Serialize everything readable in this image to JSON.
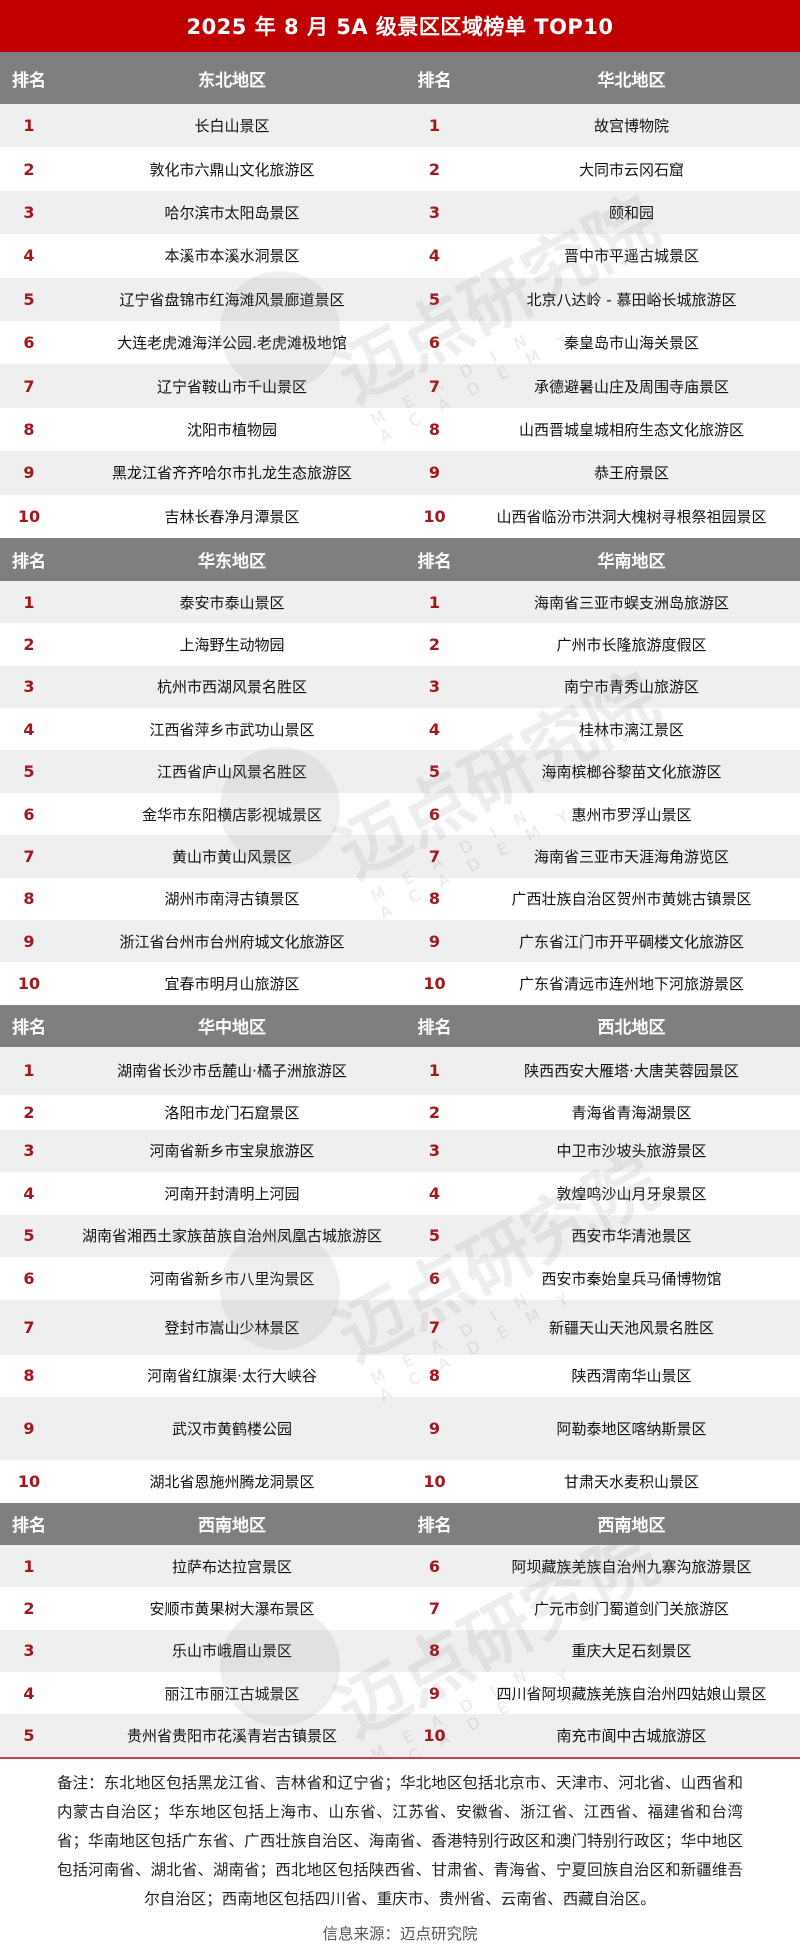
{
  "title": "2025 年 8 月 5A 级景区区域榜单 TOP10",
  "rank_header": "排名",
  "watermark": {
    "text": "迈点研究院",
    "sub": "MEADIN ACADEMY"
  },
  "colors": {
    "title_bg": "#c00000",
    "header_bg": "#7f7f7f",
    "rank_text": "#a3161c",
    "row_alt": "#efefef"
  },
  "sections": [
    {
      "left_region": "东北地区",
      "right_region": "华北地区",
      "rows": [
        {
          "lr": "1",
          "ln": "长白山景区",
          "rr": "1",
          "rn": "故宫博物院"
        },
        {
          "lr": "2",
          "ln": "敦化市六鼎山文化旅游区",
          "rr": "2",
          "rn": "大同市云冈石窟"
        },
        {
          "lr": "3",
          "ln": "哈尔滨市太阳岛景区",
          "rr": "3",
          "rn": "颐和园"
        },
        {
          "lr": "4",
          "ln": "本溪市本溪水洞景区",
          "rr": "4",
          "rn": "晋中市平遥古城景区"
        },
        {
          "lr": "5",
          "ln": "辽宁省盘锦市红海滩风景廊道景区",
          "rr": "5",
          "rn": "北京八达岭 - 慕田峪长城旅游区"
        },
        {
          "lr": "6",
          "ln": "大连老虎滩海洋公园.老虎滩极地馆",
          "rr": "6",
          "rn": "秦皇岛市山海关景区"
        },
        {
          "lr": "7",
          "ln": "辽宁省鞍山市千山景区",
          "rr": "7",
          "rn": "承德避暑山庄及周围寺庙景区"
        },
        {
          "lr": "8",
          "ln": "沈阳市植物园",
          "rr": "8",
          "rn": "山西晋城皇城相府生态文化旅游区"
        },
        {
          "lr": "9",
          "ln": "黑龙江省齐齐哈尔市扎龙生态旅游区",
          "rr": "9",
          "rn": "恭王府景区"
        },
        {
          "lr": "10",
          "ln": "吉林长春净月潭景区",
          "rr": "10",
          "rn": "山西省临汾市洪洞大槐树寻根祭祖园景区"
        }
      ]
    },
    {
      "left_region": "华东地区",
      "right_region": "华南地区",
      "rows": [
        {
          "lr": "1",
          "ln": "泰安市泰山景区",
          "rr": "1",
          "rn": "海南省三亚市蜈支洲岛旅游区"
        },
        {
          "lr": "2",
          "ln": "上海野生动物园",
          "rr": "2",
          "rn": "广州市长隆旅游度假区"
        },
        {
          "lr": "3",
          "ln": "杭州市西湖风景名胜区",
          "rr": "3",
          "rn": "南宁市青秀山旅游区"
        },
        {
          "lr": "4",
          "ln": "江西省萍乡市武功山景区",
          "rr": "4",
          "rn": "桂林市漓江景区"
        },
        {
          "lr": "5",
          "ln": "江西省庐山风景名胜区",
          "rr": "5",
          "rn": "海南槟榔谷黎苗文化旅游区"
        },
        {
          "lr": "6",
          "ln": "金华市东阳横店影视城景区",
          "rr": "6",
          "rn": "惠州市罗浮山景区"
        },
        {
          "lr": "7",
          "ln": "黄山市黄山风景区",
          "rr": "7",
          "rn": "海南省三亚市天涯海角游览区"
        },
        {
          "lr": "8",
          "ln": "湖州市南浔古镇景区",
          "rr": "8",
          "rn": "广西壮族自治区贺州市黄姚古镇景区"
        },
        {
          "lr": "9",
          "ln": "浙江省台州市台州府城文化旅游区",
          "rr": "9",
          "rn": "广东省江门市开平碉楼文化旅游区"
        },
        {
          "lr": "10",
          "ln": "宜春市明月山旅游区",
          "rr": "10",
          "rn": "广东省清远市连州地下河旅游景区"
        }
      ]
    },
    {
      "left_region": "华中地区",
      "right_region": "西北地区",
      "rows": [
        {
          "lr": "1",
          "ln": "湖南省长沙市岳麓山·橘子洲旅游区",
          "rr": "1",
          "rn": "陕西西安大雁塔·大唐芙蓉园景区"
        },
        {
          "lr": "2",
          "ln": "洛阳市龙门石窟景区",
          "rr": "2",
          "rn": "青海省青海湖景区"
        },
        {
          "lr": "3",
          "ln": "河南省新乡市宝泉旅游区",
          "rr": "3",
          "rn": "中卫市沙坡头旅游景区"
        },
        {
          "lr": "4",
          "ln": "河南开封清明上河园",
          "rr": "4",
          "rn": "敦煌鸣沙山月牙泉景区"
        },
        {
          "lr": "5",
          "ln": "湖南省湘西土家族苗族自治州凤凰古城旅游区",
          "rr": "5",
          "rn": "西安市华清池景区"
        },
        {
          "lr": "6",
          "ln": "河南省新乡市八里沟景区",
          "rr": "6",
          "rn": "西安市秦始皇兵马俑博物馆"
        },
        {
          "lr": "7",
          "ln": "登封市嵩山少林景区",
          "rr": "7",
          "rn": "新疆天山天池风景名胜区"
        },
        {
          "lr": "8",
          "ln": "河南省红旗渠·太行大峡谷",
          "rr": "8",
          "rn": "陕西渭南华山景区"
        },
        {
          "lr": "9",
          "ln": "武汉市黄鹤楼公园",
          "rr": "9",
          "rn": "阿勒泰地区喀纳斯景区"
        },
        {
          "lr": "10",
          "ln": "湖北省恩施州腾龙洞景区",
          "rr": "10",
          "rn": "甘肃天水麦积山景区"
        }
      ]
    },
    {
      "left_region": "西南地区",
      "right_region": "西南地区",
      "rows": [
        {
          "lr": "1",
          "ln": "拉萨布达拉宫景区",
          "rr": "6",
          "rn": "阿坝藏族羌族自治州九寨沟旅游景区"
        },
        {
          "lr": "2",
          "ln": "安顺市黄果树大瀑布景区",
          "rr": "7",
          "rn": "广元市剑门蜀道剑门关旅游区"
        },
        {
          "lr": "3",
          "ln": "乐山市峨眉山景区",
          "rr": "8",
          "rn": "重庆大足石刻景区"
        },
        {
          "lr": "4",
          "ln": "丽江市丽江古城景区",
          "rr": "9",
          "rn": "四川省阿坝藏族羌族自治州四姑娘山景区"
        },
        {
          "lr": "5",
          "ln": "贵州省贵阳市花溪青岩古镇景区",
          "rr": "10",
          "rn": "南充市阆中古城旅游区"
        }
      ]
    }
  ],
  "note": "备注：东北地区包括黑龙江省、吉林省和辽宁省；华北地区包括北京市、天津市、河北省、山西省和内蒙古自治区；华东地区包括上海市、山东省、江苏省、安徽省、浙江省、江西省、福建省和台湾省；华南地区包括广东省、广西壮族自治区、海南省、香港特别行政区和澳门特别行政区；华中地区包括河南省、湖北省、湖南省；西北地区包括陕西省、甘肃省、青海省、宁夏回族自治区和新疆维吾尔自治区；西南地区包括四川省、重庆市、贵州省、云南省、西藏自治区。",
  "source": "信息来源：迈点研究院"
}
